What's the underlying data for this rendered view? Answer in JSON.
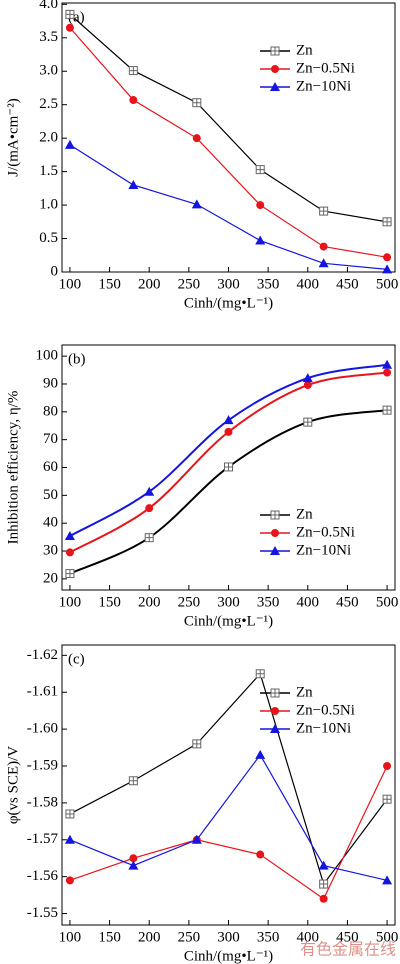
{
  "chart_data": [
    {
      "type": "line",
      "annotation": "(a)",
      "y_label": "J/(mA•cm⁻²)",
      "x_label": "Cinh/(mg•L⁻¹)",
      "x": [
        100,
        180,
        260,
        340,
        420,
        500
      ],
      "xlim": [
        90,
        510
      ],
      "xticks": [
        100,
        150,
        200,
        250,
        300,
        350,
        400,
        450,
        500
      ],
      "ylim": [
        0,
        4.02
      ],
      "yticks": [
        0,
        0.5,
        {
          "value": 1,
          "label": "1.0"
        },
        1.5,
        {
          "value": 2,
          "label": "2.0"
        },
        2.5,
        {
          "value": 3,
          "label": "3.0"
        },
        3.5,
        {
          "value": 4,
          "label": "4.0"
        }
      ],
      "legend": "upper right",
      "smooth": false,
      "series": [
        {
          "name": "Zn",
          "color": "#000000",
          "marker": "square-cross",
          "values": [
            3.85,
            3.01,
            2.53,
            1.53,
            0.91,
            0.75
          ]
        },
        {
          "name": "Zn−0.5Ni",
          "color": "#e8141c",
          "marker": "circle",
          "values": [
            3.65,
            2.57,
            2.0,
            1.0,
            0.38,
            0.22
          ]
        },
        {
          "name": "Zn−10Ni",
          "color": "#1515e0",
          "marker": "triangle",
          "values": [
            1.9,
            1.3,
            1.01,
            0.47,
            0.13,
            0.04
          ]
        }
      ]
    },
    {
      "type": "line",
      "annotation": "(b)",
      "y_label": "Inhibition efficiency, η/%",
      "x_label": "Cinh/(mg•L⁻¹)",
      "x": [
        100,
        200,
        300,
        400,
        500
      ],
      "xlim": [
        90,
        510
      ],
      "xticks": [
        100,
        150,
        200,
        250,
        300,
        350,
        400,
        450,
        500
      ],
      "ylim": [
        16,
        104
      ],
      "yticks": [
        20,
        30,
        40,
        50,
        60,
        70,
        80,
        90,
        100
      ],
      "legend": "lower right",
      "smooth": true,
      "series": [
        {
          "name": "Zn",
          "color": "#000000",
          "marker": "square-cross",
          "values": [
            21.9,
            34.8,
            60.2,
            76.3,
            80.6
          ]
        },
        {
          "name": "Zn−0.5Ni",
          "color": "#e8141c",
          "marker": "circle",
          "values": [
            29.5,
            45.4,
            72.8,
            89.6,
            94.1
          ]
        },
        {
          "name": "Zn−10Ni",
          "color": "#1515e0",
          "marker": "triangle",
          "values": [
            35.4,
            51.3,
            77.0,
            92.1,
            96.9
          ]
        }
      ]
    },
    {
      "type": "line",
      "annotation": "(c)",
      "y_label": "φ(vs SCE)/V",
      "x_label": "Cinh/(mg•L⁻¹)",
      "x": [
        100,
        180,
        260,
        340,
        420,
        500
      ],
      "xlim": [
        90,
        510
      ],
      "xticks": [
        100,
        150,
        200,
        250,
        300,
        350,
        400,
        450,
        500
      ],
      "ylim": [
        -1.5469,
        -1.6228
      ],
      "yticks": [
        -1.62,
        -1.61,
        {
          "value": -1.6,
          "label": "-1.60"
        },
        -1.59,
        -1.58,
        -1.57,
        -1.56,
        -1.55
      ],
      "legend": "upper right",
      "smooth": false,
      "series": [
        {
          "name": "Zn",
          "color": "#000000",
          "marker": "square-cross",
          "values": [
            -1.577,
            -1.586,
            -1.596,
            -1.615,
            -1.558,
            -1.581
          ]
        },
        {
          "name": "Zn−0.5Ni",
          "color": "#e8141c",
          "marker": "circle",
          "values": [
            -1.559,
            -1.565,
            -1.57,
            -1.566,
            -1.554,
            -1.59
          ]
        },
        {
          "name": "Zn−10Ni",
          "color": "#1515e0",
          "marker": "triangle",
          "values": [
            -1.57,
            -1.563,
            -1.57,
            -1.593,
            -1.563,
            -1.559
          ]
        }
      ]
    }
  ],
  "watermark": "有色金属在线"
}
